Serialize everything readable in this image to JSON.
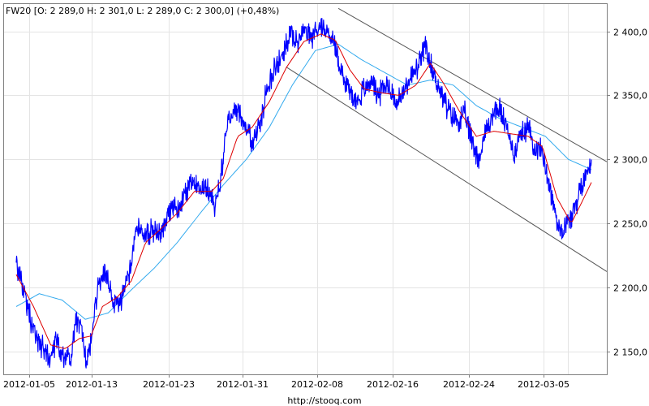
{
  "chart_data": {
    "type": "line",
    "title": "FW20 [O: 2 289,0  H: 2 301,0  L: 2 289,0  C: 2 300,0] (+0,48%)",
    "source_label": "http://stooq.com",
    "ylim": [
      2132,
      2422
    ],
    "grid": true,
    "x_ticks": [
      "2012-01-05",
      "2012-01-13",
      "2012-01-23",
      "2012-01-31",
      "2012-02-08",
      "2012-02-16",
      "2012-02-24",
      "2012-03-05"
    ],
    "y_ticks": [
      {
        "value": 2150,
        "label": "2 150,0"
      },
      {
        "value": 2200,
        "label": "2 200,0"
      },
      {
        "value": 2250,
        "label": "2 250,0"
      },
      {
        "value": 2300,
        "label": "2 300,0"
      },
      {
        "value": 2350,
        "label": "2 350,0"
      },
      {
        "value": 2400,
        "label": "2 400,0"
      }
    ],
    "price_color": "#0000ff",
    "fast_ma_color": "#dd0000",
    "slow_ma_color": "#33aaee",
    "channel_color": "#555555",
    "price_series_approx": [
      [
        0.0,
        2218
      ],
      [
        0.012,
        2200
      ],
      [
        0.025,
        2175
      ],
      [
        0.038,
        2158
      ],
      [
        0.05,
        2150
      ],
      [
        0.06,
        2145
      ],
      [
        0.07,
        2160
      ],
      [
        0.08,
        2148
      ],
      [
        0.095,
        2145
      ],
      [
        0.105,
        2175
      ],
      [
        0.115,
        2165
      ],
      [
        0.122,
        2140
      ],
      [
        0.13,
        2158
      ],
      [
        0.142,
        2200
      ],
      [
        0.155,
        2210
      ],
      [
        0.165,
        2195
      ],
      [
        0.175,
        2185
      ],
      [
        0.188,
        2195
      ],
      [
        0.2,
        2218
      ],
      [
        0.21,
        2250
      ],
      [
        0.222,
        2240
      ],
      [
        0.235,
        2245
      ],
      [
        0.25,
        2240
      ],
      [
        0.265,
        2262
      ],
      [
        0.28,
        2260
      ],
      [
        0.295,
        2272
      ],
      [
        0.31,
        2285
      ],
      [
        0.322,
        2280
      ],
      [
        0.335,
        2275
      ],
      [
        0.345,
        2265
      ],
      [
        0.355,
        2282
      ],
      [
        0.365,
        2325
      ],
      [
        0.375,
        2335
      ],
      [
        0.385,
        2340
      ],
      [
        0.4,
        2325
      ],
      [
        0.412,
        2312
      ],
      [
        0.425,
        2330
      ],
      [
        0.438,
        2360
      ],
      [
        0.45,
        2370
      ],
      [
        0.465,
        2385
      ],
      [
        0.478,
        2398
      ],
      [
        0.49,
        2392
      ],
      [
        0.5,
        2402
      ],
      [
        0.515,
        2395
      ],
      [
        0.528,
        2405
      ],
      [
        0.54,
        2400
      ],
      [
        0.552,
        2392
      ],
      [
        0.562,
        2375
      ],
      [
        0.572,
        2360
      ],
      [
        0.582,
        2352
      ],
      [
        0.592,
        2345
      ],
      [
        0.605,
        2355
      ],
      [
        0.618,
        2362
      ],
      [
        0.63,
        2350
      ],
      [
        0.645,
        2360
      ],
      [
        0.66,
        2345
      ],
      [
        0.672,
        2350
      ],
      [
        0.685,
        2365
      ],
      [
        0.698,
        2370
      ],
      [
        0.71,
        2388
      ],
      [
        0.722,
        2372
      ],
      [
        0.732,
        2360
      ],
      [
        0.745,
        2345
      ],
      [
        0.755,
        2335
      ],
      [
        0.768,
        2330
      ],
      [
        0.78,
        2335
      ],
      [
        0.792,
        2315
      ],
      [
        0.805,
        2300
      ],
      [
        0.815,
        2320
      ],
      [
        0.828,
        2335
      ],
      [
        0.84,
        2340
      ],
      [
        0.852,
        2325
      ],
      [
        0.865,
        2305
      ],
      [
        0.878,
        2320
      ],
      [
        0.89,
        2325
      ],
      [
        0.902,
        2310
      ],
      [
        0.915,
        2305
      ],
      [
        0.925,
        2285
      ],
      [
        0.935,
        2262
      ],
      [
        0.945,
        2245
      ],
      [
        0.958,
        2250
      ],
      [
        0.97,
        2260
      ],
      [
        0.98,
        2275
      ],
      [
        0.99,
        2288
      ],
      [
        1.0,
        2300
      ]
    ],
    "fast_ma_approx": [
      [
        0.0,
        2210
      ],
      [
        0.03,
        2185
      ],
      [
        0.06,
        2155
      ],
      [
        0.085,
        2152
      ],
      [
        0.11,
        2160
      ],
      [
        0.13,
        2162
      ],
      [
        0.15,
        2185
      ],
      [
        0.175,
        2192
      ],
      [
        0.2,
        2205
      ],
      [
        0.225,
        2235
      ],
      [
        0.25,
        2245
      ],
      [
        0.28,
        2258
      ],
      [
        0.31,
        2275
      ],
      [
        0.34,
        2275
      ],
      [
        0.36,
        2285
      ],
      [
        0.385,
        2318
      ],
      [
        0.41,
        2325
      ],
      [
        0.44,
        2345
      ],
      [
        0.47,
        2372
      ],
      [
        0.5,
        2392
      ],
      [
        0.53,
        2398
      ],
      [
        0.555,
        2393
      ],
      [
        0.58,
        2370
      ],
      [
        0.605,
        2355
      ],
      [
        0.635,
        2352
      ],
      [
        0.665,
        2350
      ],
      [
        0.695,
        2358
      ],
      [
        0.72,
        2375
      ],
      [
        0.745,
        2358
      ],
      [
        0.77,
        2338
      ],
      [
        0.8,
        2318
      ],
      [
        0.83,
        2322
      ],
      [
        0.86,
        2320
      ],
      [
        0.89,
        2318
      ],
      [
        0.915,
        2310
      ],
      [
        0.94,
        2270
      ],
      [
        0.965,
        2250
      ],
      [
        0.985,
        2268
      ],
      [
        1.0,
        2282
      ]
    ],
    "slow_ma_approx": [
      [
        0.0,
        2185
      ],
      [
        0.04,
        2195
      ],
      [
        0.08,
        2190
      ],
      [
        0.12,
        2175
      ],
      [
        0.16,
        2180
      ],
      [
        0.2,
        2198
      ],
      [
        0.24,
        2215
      ],
      [
        0.28,
        2235
      ],
      [
        0.32,
        2258
      ],
      [
        0.36,
        2280
      ],
      [
        0.4,
        2300
      ],
      [
        0.44,
        2325
      ],
      [
        0.48,
        2358
      ],
      [
        0.52,
        2385
      ],
      [
        0.56,
        2390
      ],
      [
        0.6,
        2378
      ],
      [
        0.64,
        2368
      ],
      [
        0.68,
        2358
      ],
      [
        0.72,
        2362
      ],
      [
        0.76,
        2358
      ],
      [
        0.8,
        2342
      ],
      [
        0.84,
        2332
      ],
      [
        0.88,
        2325
      ],
      [
        0.92,
        2318
      ],
      [
        0.96,
        2300
      ],
      [
        1.0,
        2292
      ]
    ],
    "channel_upper_approx": [
      [
        0.56,
        2418
      ],
      [
        1.0,
        2305
      ]
    ],
    "channel_lower_approx": [
      [
        0.47,
        2372
      ],
      [
        1.0,
        2220
      ]
    ]
  }
}
